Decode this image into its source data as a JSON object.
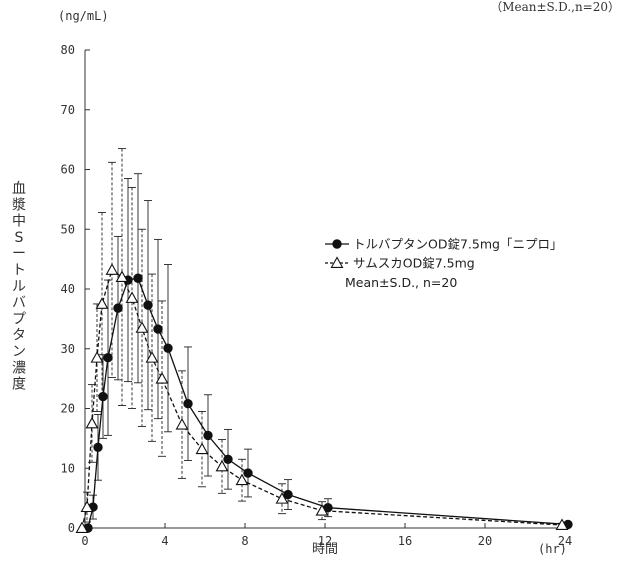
{
  "chart_data": {
    "type": "line",
    "top_note": "（Mean±S.D.,n=20）",
    "y_unit": "(ng/mL)",
    "x_unit": "(hr)",
    "xlabel": "時間",
    "ylabel": "血漿中Sートルバプタン濃度",
    "xlim": [
      0,
      24
    ],
    "ylim": [
      0,
      80
    ],
    "x_ticks": [
      0,
      4,
      8,
      12,
      16,
      20,
      24
    ],
    "y_ticks": [
      0,
      10,
      20,
      30,
      40,
      50,
      60,
      70,
      80
    ],
    "legend": {
      "position": "right",
      "stats_note": "Mean±S.D., n=20"
    },
    "series": [
      {
        "name": "トルバプタンOD錠7.5mg「ニプロ」",
        "marker": "filled-circle",
        "line_style": "solid",
        "color": "#111111",
        "x": [
          0,
          0.25,
          0.5,
          0.75,
          1,
          1.5,
          2,
          2.5,
          3,
          3.5,
          4,
          5,
          6,
          7,
          8,
          10,
          12,
          24
        ],
        "y": [
          0,
          3.5,
          13.5,
          22,
          28.5,
          36.8,
          41.5,
          41.8,
          37.3,
          33.3,
          30.1,
          20.8,
          15.5,
          11.5,
          9.2,
          5.6,
          3.4,
          0.6
        ],
        "sd": [
          0,
          2,
          5.5,
          7,
          13,
          12,
          17,
          17.5,
          17.5,
          15,
          14,
          9.5,
          6.8,
          5,
          4,
          2.5,
          1.5,
          0.3
        ]
      },
      {
        "name": "サムスカOD錠7.5mg",
        "marker": "open-triangle",
        "line_style": "dashed",
        "color": "#111111",
        "x": [
          0,
          0.25,
          0.5,
          0.75,
          1,
          1.5,
          2,
          2.5,
          3,
          3.5,
          4,
          5,
          6,
          7,
          8,
          10,
          12,
          24
        ],
        "y": [
          0,
          3.5,
          17.5,
          28.5,
          37.5,
          43.2,
          42,
          38.5,
          33.5,
          28.5,
          25,
          17.3,
          13.2,
          10.3,
          8,
          4.9,
          2.9,
          0.5
        ],
        "sd": [
          0,
          2.5,
          6.5,
          9,
          15.3,
          18,
          21.5,
          18.5,
          16.5,
          14,
          13,
          9,
          6.3,
          4.5,
          3.5,
          2.5,
          1.5,
          0.3
        ]
      }
    ]
  }
}
